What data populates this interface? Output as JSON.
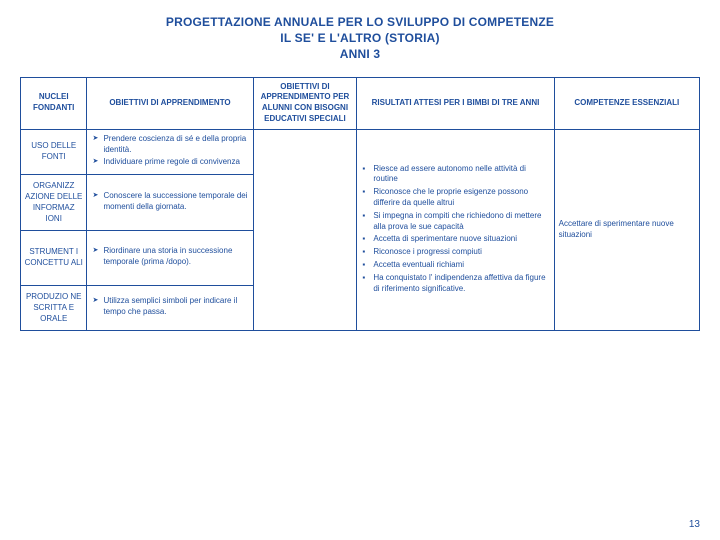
{
  "title_line1": "PROGETTAZIONE ANNUALE PER LO SVILUPPO DI COMPETENZE",
  "title_line2": "IL SE' E L'ALTRO (STORIA)",
  "title_line3": "ANNI 3",
  "headers": {
    "c1": "NUCLEI FONDANTI",
    "c2": "OBIETTIVI  DI APPRENDIMENTO",
    "c3": "OBIETTIVI  DI APPRENDIMENTO PER ALUNNI CON BISOGNI EDUCATIVI SPECIALI",
    "c4": "RISULTATI  ATTESI PER I BIMBI DI TRE ANNI",
    "c5": "COMPETENZE ESSENZIALI"
  },
  "rows": {
    "r1_head": "USO DELLE FONTI",
    "r1_item1": "Prendere coscienza di sé e della propria identità.",
    "r1_item2": "Individuare prime regole di convivenza",
    "r2_head": "ORGANIZZ AZIONE DELLE INFORMAZ IONI",
    "r2_item1": "Conoscere la successione temporale dei momenti della giornata.",
    "r3_head": "STRUMENT I CONCETTU ALI",
    "r3_item1": "Riordinare una storia in successione temporale (prima /dopo).",
    "r4_head": "PRODUZIO NE SCRITTA E ORALE",
    "r4_item1": "Utilizza semplici simboli per indicare il tempo che passa."
  },
  "risultati": {
    "i1": "Riesce ad essere autonomo nelle attività di routine",
    "i2": "Riconosce che le proprie esigenze possono differire da quelle altrui",
    "i3": "Si impegna in compiti che richiedono di mettere alla prova le sue capacità",
    "i4": "Accetta di sperimentare nuove situazioni",
    "i5": "Riconosce i progressi compiuti",
    "i6": "Accetta eventuali richiami",
    "i7": " Ha conquistato l' indipendenza affettiva da figure di riferimento significative."
  },
  "essenziali": "Accettare di sperimentare nuove situazioni",
  "pagenum": "13",
  "colors": {
    "text": "#1f4e9c",
    "border": "#1f4e9c",
    "background": "#ffffff"
  }
}
